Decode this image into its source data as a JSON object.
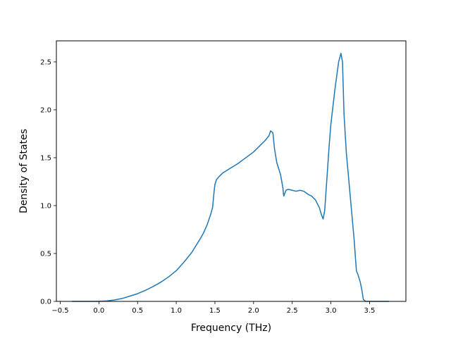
{
  "chart_data": {
    "type": "line",
    "title": "",
    "xlabel": "Frequency (THz)",
    "ylabel": "Density of States",
    "xlim": [
      -0.55,
      3.97
    ],
    "ylim": [
      0,
      2.72
    ],
    "grid": false,
    "x_ticks": [
      -0.5,
      0.0,
      0.5,
      1.0,
      1.5,
      2.0,
      2.5,
      3.0,
      3.5
    ],
    "x_tick_labels": [
      "−0.5",
      "0.0",
      "0.5",
      "1.0",
      "1.5",
      "2.0",
      "2.5",
      "3.0",
      "3.5"
    ],
    "y_ticks": [
      0.0,
      0.5,
      1.0,
      1.5,
      2.0,
      2.5
    ],
    "y_tick_labels": [
      "0.0",
      "0.5",
      "1.0",
      "1.5",
      "2.0",
      "2.5"
    ],
    "series": [
      {
        "color": "#1f77b4",
        "x": [
          -0.35,
          -0.2,
          0.0,
          0.1,
          0.2,
          0.3,
          0.4,
          0.5,
          0.6,
          0.7,
          0.8,
          0.9,
          1.0,
          1.1,
          1.2,
          1.3,
          1.35,
          1.4,
          1.45,
          1.47,
          1.49,
          1.5,
          1.52,
          1.55,
          1.6,
          1.7,
          1.8,
          1.9,
          2.0,
          2.1,
          2.15,
          2.2,
          2.22,
          2.25,
          2.27,
          2.3,
          2.35,
          2.38,
          2.39,
          2.42,
          2.45,
          2.5,
          2.55,
          2.6,
          2.65,
          2.7,
          2.75,
          2.8,
          2.85,
          2.88,
          2.9,
          2.92,
          2.95,
          2.98,
          3.0,
          3.05,
          3.1,
          3.13,
          3.15,
          3.17,
          3.2,
          3.25,
          3.3,
          3.33,
          3.35,
          3.38,
          3.4,
          3.42,
          3.45,
          3.5,
          3.75
        ],
        "y": [
          0.0,
          0.0,
          0.0,
          0.005,
          0.015,
          0.03,
          0.055,
          0.08,
          0.115,
          0.155,
          0.2,
          0.255,
          0.32,
          0.41,
          0.51,
          0.64,
          0.71,
          0.8,
          0.92,
          0.98,
          1.15,
          1.22,
          1.27,
          1.3,
          1.34,
          1.39,
          1.44,
          1.5,
          1.56,
          1.64,
          1.68,
          1.73,
          1.78,
          1.76,
          1.6,
          1.45,
          1.32,
          1.18,
          1.1,
          1.16,
          1.17,
          1.16,
          1.15,
          1.16,
          1.15,
          1.12,
          1.1,
          1.06,
          0.98,
          0.9,
          0.86,
          0.95,
          1.3,
          1.65,
          1.85,
          2.2,
          2.5,
          2.59,
          2.5,
          1.95,
          1.55,
          1.1,
          0.65,
          0.32,
          0.28,
          0.2,
          0.12,
          0.02,
          0.0,
          0.0,
          0.0
        ]
      }
    ]
  }
}
